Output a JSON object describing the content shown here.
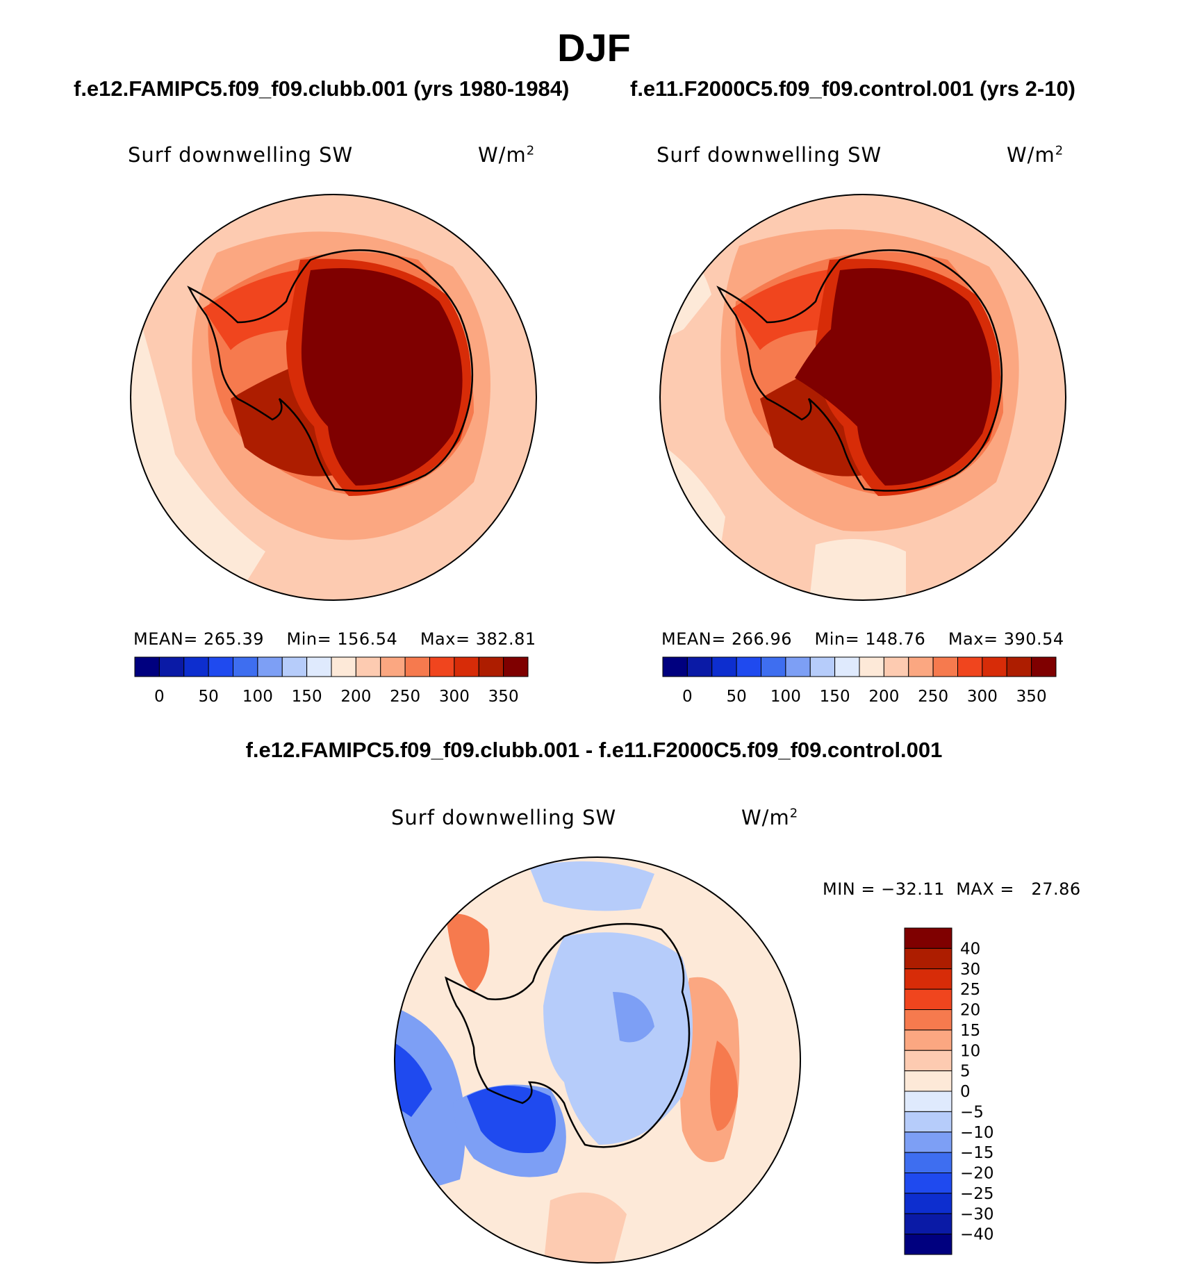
{
  "season": "DJF",
  "panels": [
    {
      "case_title": "f.e12.FAMIPC5.f09_f09.clubb.001 (yrs 1980-1984)",
      "variable": "Surf downwelling SW",
      "units": "W/m",
      "units_exp": "2",
      "mean_label": "MEAN=",
      "mean": "265.39",
      "min_label": "Min=",
      "min": "156.54",
      "max_label": "Max=",
      "max": "382.81"
    },
    {
      "case_title": "f.e11.F2000C5.f09_f09.control.001 (yrs 2-10)",
      "variable": "Surf downwelling SW",
      "units": "W/m",
      "units_exp": "2",
      "mean_label": "MEAN=",
      "mean": "266.96",
      "min_label": "Min=",
      "min": "148.76",
      "max_label": "Max=",
      "max": "390.54"
    }
  ],
  "abs_colorbar": {
    "colors": [
      "#00007f",
      "#0a1aa6",
      "#0d2ecf",
      "#1f4aef",
      "#3e6ef0",
      "#7d9ff5",
      "#b6ccfa",
      "#dfeafd",
      "#fde9d8",
      "#fdcbb1",
      "#fba781",
      "#f67a4e",
      "#f0451e",
      "#d72c08",
      "#ad1d00",
      "#7f0000"
    ],
    "ticks": [
      "0",
      "50",
      "100",
      "150",
      "200",
      "250",
      "300",
      "350"
    ]
  },
  "difference": {
    "title": "f.e12.FAMIPC5.f09_f09.clubb.001 - f.e11.F2000C5.f09_f09.control.001",
    "variable": "Surf downwelling SW",
    "units": "W/m",
    "units_exp": "2",
    "min_label": "MIN =",
    "min": "−32.11",
    "max_label": "MAX =",
    "max": "27.86",
    "colorbar": {
      "colors": [
        "#7f0000",
        "#ad1d00",
        "#d72c08",
        "#f0451e",
        "#f67a4e",
        "#fba781",
        "#fdcbb1",
        "#fde9d8",
        "#dfeafd",
        "#b6ccfa",
        "#7d9ff5",
        "#3e6ef0",
        "#1f4aef",
        "#0d2ecf",
        "#0a1aa6",
        "#00007f"
      ],
      "ticks": [
        "40",
        "30",
        "25",
        "20",
        "15",
        "10",
        "5",
        "0",
        "−5",
        "−10",
        "−15",
        "−20",
        "−25",
        "−30",
        "−40"
      ]
    }
  },
  "colors": {
    "ocean_low": "#fde9d8",
    "ocean_mid": "#fdcbb1",
    "ocean_high": "#fba781",
    "land_max": "#7f0000",
    "diff_land": "#b6ccfa",
    "diff_neg_strong": "#1f4aef",
    "diff_pos": "#f67a4e"
  }
}
